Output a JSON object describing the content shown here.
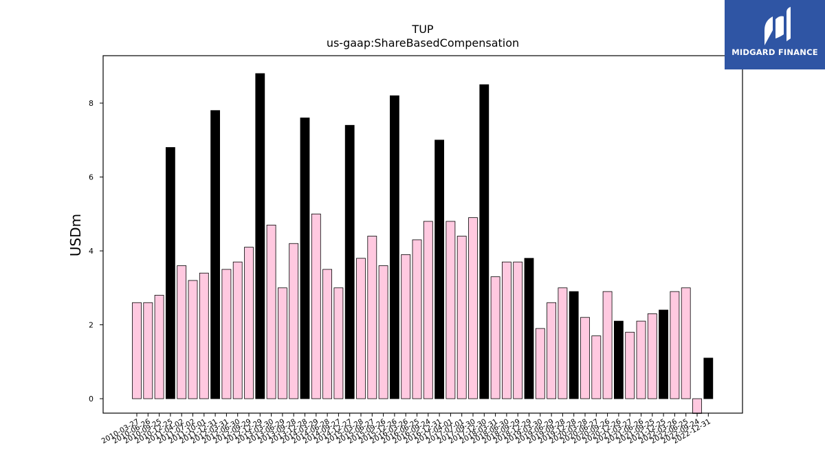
{
  "chart_data": {
    "type": "bar",
    "title": "TUP",
    "subtitle": "us-gaap:ShareBasedCompensation",
    "xlabel": "",
    "ylabel": "USDm",
    "ylim": [
      -0.4,
      9.3
    ],
    "yticks": [
      0,
      2,
      4,
      6,
      8
    ],
    "grid": false,
    "colors": {
      "quarter": "#ffc9e0",
      "annual": "#000000",
      "edge": "#000000"
    },
    "categories": [
      "2010-03-27",
      "2010-06-26",
      "2010-09-25",
      "2010-12-25",
      "2011-04-02",
      "2011-07-02",
      "2011-10-01",
      "2011-12-31",
      "2012-03-31",
      "2012-06-30",
      "2012-09-29",
      "2012-12-29",
      "2013-03-30",
      "2013-06-29",
      "2013-09-28",
      "2013-12-28",
      "2014-03-29",
      "2014-06-28",
      "2014-09-27",
      "2014-12-27",
      "2015-03-28",
      "2015-06-27",
      "2015-09-26",
      "2015-12-26",
      "2016-03-26",
      "2016-06-25",
      "2016-09-24",
      "2016-12-31",
      "2017-04-01",
      "2017-07-01",
      "2017-09-30",
      "2017-12-30",
      "2018-03-31",
      "2018-06-30",
      "2018-09-29",
      "2018-12-29",
      "2019-03-30",
      "2019-06-29",
      "2019-09-28",
      "2019-12-28",
      "2020-03-28",
      "2020-06-27",
      "2020-09-26",
      "2020-12-26",
      "2021-03-27",
      "2021-06-26",
      "2021-09-25",
      "2021-12-25",
      "2022-03-26",
      "2022-06-25",
      "2022-09-24",
      "2022-12-31"
    ],
    "values": [
      2.6,
      2.6,
      2.8,
      6.8,
      3.6,
      3.2,
      3.4,
      7.8,
      3.5,
      3.7,
      4.1,
      8.8,
      4.7,
      3.0,
      4.2,
      7.6,
      5.0,
      3.5,
      3.0,
      7.4,
      3.8,
      4.4,
      3.6,
      8.2,
      3.9,
      4.3,
      4.8,
      7.0,
      4.8,
      4.4,
      4.9,
      8.5,
      3.3,
      3.7,
      3.7,
      3.8,
      1.9,
      2.6,
      3.0,
      2.9,
      2.2,
      1.7,
      2.9,
      2.1,
      1.8,
      2.1,
      2.3,
      2.4,
      2.9,
      3.0,
      -0.4,
      1.1
    ],
    "annual": [
      false,
      false,
      false,
      true,
      false,
      false,
      false,
      true,
      false,
      false,
      false,
      true,
      false,
      false,
      false,
      true,
      false,
      false,
      false,
      true,
      false,
      false,
      false,
      true,
      false,
      false,
      false,
      true,
      false,
      false,
      false,
      true,
      false,
      false,
      false,
      true,
      false,
      false,
      false,
      true,
      false,
      false,
      false,
      true,
      false,
      false,
      false,
      true,
      false,
      false,
      false,
      true
    ]
  },
  "logo": {
    "text": "MIDGARD FINANCE",
    "bg": "#2f55a4"
  }
}
